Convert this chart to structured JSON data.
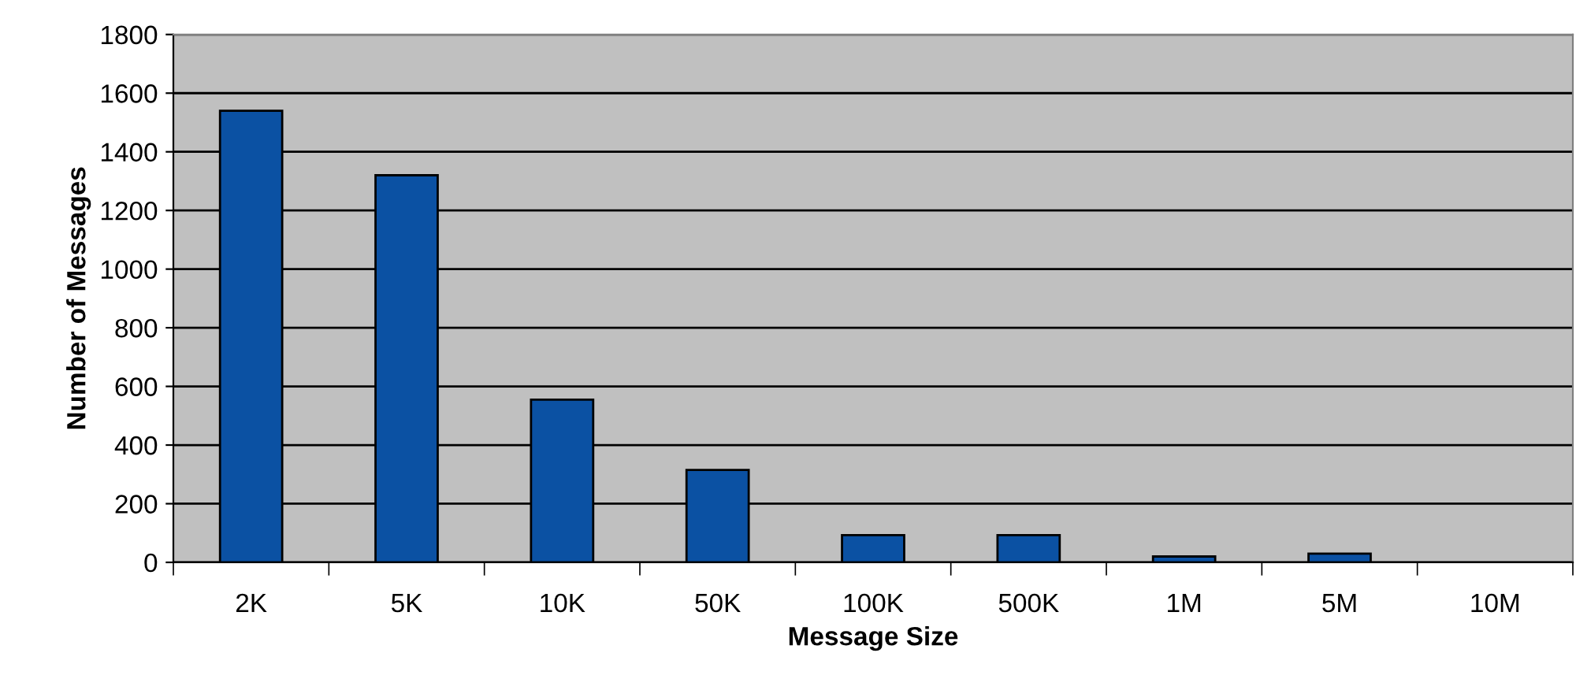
{
  "chart_data": {
    "type": "bar",
    "xlabel": "Message Size",
    "ylabel": "Number of Messages",
    "categories": [
      "2K",
      "5K",
      "10K",
      "50K",
      "100K",
      "500K",
      "1M",
      "5M",
      "10M"
    ],
    "values": [
      1540,
      1320,
      555,
      315,
      93,
      93,
      20,
      30,
      0
    ],
    "color": "#0b51a3",
    "ylim": [
      0,
      1800
    ],
    "yticks": [
      0,
      200,
      400,
      600,
      800,
      1000,
      1200,
      1400,
      1600,
      1800
    ],
    "grid": "y"
  }
}
